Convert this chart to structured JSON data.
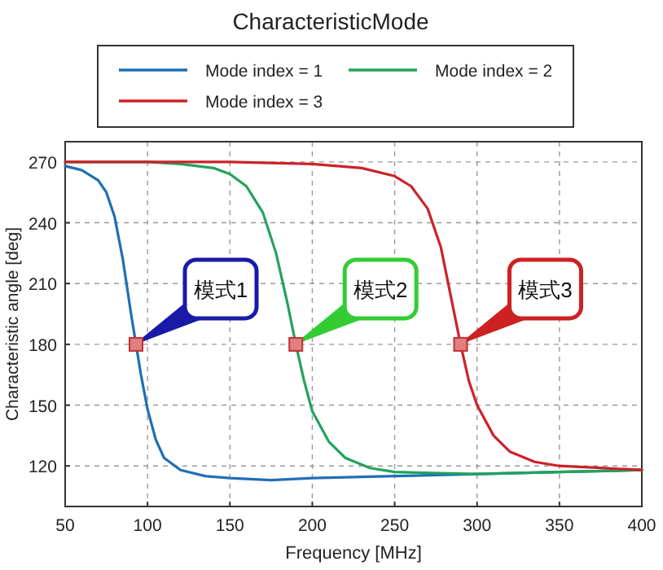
{
  "chart_data": {
    "type": "line",
    "title": "CharacteristicMode",
    "xlabel": "Frequency [MHz]",
    "ylabel": "Characteristic angle [deg]",
    "xlim": [
      50,
      400
    ],
    "xticks": [
      50,
      100,
      150,
      200,
      250,
      300,
      350,
      400
    ],
    "ylim": [
      100,
      280
    ],
    "yticks": [
      120,
      150,
      180,
      210,
      240,
      270
    ],
    "grid": true,
    "legend": "top",
    "line_style": "solid",
    "series": [
      {
        "name": "Mode index = 1",
        "color": "#1f6fb5",
        "x": [
          50,
          60,
          70,
          75,
          80,
          85,
          90,
          93,
          96,
          100,
          105,
          110,
          120,
          135,
          150,
          175,
          200,
          250,
          300,
          350,
          400
        ],
        "values": [
          268,
          266,
          261,
          255,
          243,
          222,
          195,
          180,
          165,
          148,
          133,
          124,
          118,
          115,
          114,
          113,
          114,
          115,
          116,
          117,
          118
        ]
      },
      {
        "name": "Mode index = 2",
        "color": "#22a35a",
        "x": [
          50,
          100,
          120,
          140,
          150,
          160,
          170,
          178,
          185,
          190,
          195,
          200,
          210,
          220,
          235,
          250,
          300,
          350,
          400
        ],
        "values": [
          270,
          270,
          269,
          267,
          264,
          258,
          245,
          225,
          200,
          180,
          162,
          147,
          132,
          124,
          119,
          117,
          116,
          117,
          118
        ]
      },
      {
        "name": "Mode index = 3",
        "color": "#cc2229",
        "x": [
          50,
          150,
          200,
          230,
          250,
          260,
          270,
          278,
          285,
          290,
          295,
          300,
          310,
          320,
          335,
          350,
          375,
          400
        ],
        "values": [
          270,
          270,
          269,
          267,
          263,
          258,
          247,
          228,
          200,
          180,
          162,
          150,
          135,
          127,
          122,
          120,
          119,
          118
        ]
      }
    ],
    "annotations": [
      {
        "text": "模式1",
        "x": 93,
        "y": 180
      },
      {
        "text": "模式2",
        "x": 190,
        "y": 180
      },
      {
        "text": "模式3",
        "x": 290,
        "y": 180
      }
    ]
  }
}
